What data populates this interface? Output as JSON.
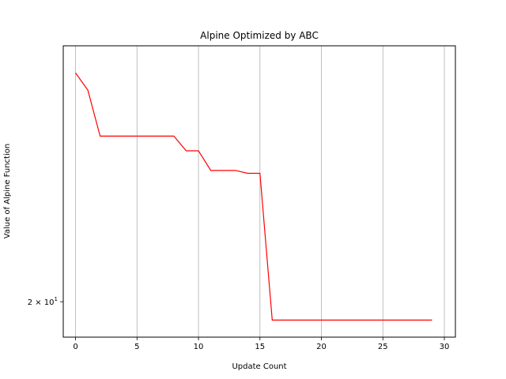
{
  "chart_data": {
    "type": "line",
    "title": "Alpine Optimized by ABC",
    "xlabel": "Update Count",
    "ylabel": "Value of Alpine Function",
    "xlim": [
      -1,
      30.9
    ],
    "ylim": [
      18.3,
      38.0
    ],
    "yscale": "log",
    "x_ticks": [
      0,
      5,
      10,
      15,
      20,
      25,
      30
    ],
    "x_tick_labels": [
      "0",
      "5",
      "10",
      "15",
      "20",
      "25",
      "30"
    ],
    "y_ticks": [
      20
    ],
    "y_tick_labels": [
      "2 × 10"
    ],
    "y_tick_exponents": [
      "1"
    ],
    "grid": "x-major",
    "grid_color": "#b0b0b0",
    "line_color": "#ff0000",
    "series": [
      {
        "x": [
          0,
          1,
          2,
          3,
          4,
          5,
          6,
          7,
          8,
          9,
          10,
          11,
          12,
          13,
          14,
          15,
          16,
          17,
          18,
          19,
          20,
          21,
          22,
          23,
          24,
          25,
          26,
          27,
          28,
          29
        ],
        "values": [
          35.5,
          34.0,
          30.3,
          30.3,
          30.3,
          30.3,
          30.3,
          30.3,
          30.3,
          29.2,
          29.2,
          27.8,
          27.8,
          27.8,
          27.6,
          27.6,
          19.1,
          19.1,
          19.1,
          19.1,
          19.1,
          19.1,
          19.1,
          19.1,
          19.1,
          19.1,
          19.1,
          19.1,
          19.1,
          19.1
        ]
      }
    ]
  }
}
